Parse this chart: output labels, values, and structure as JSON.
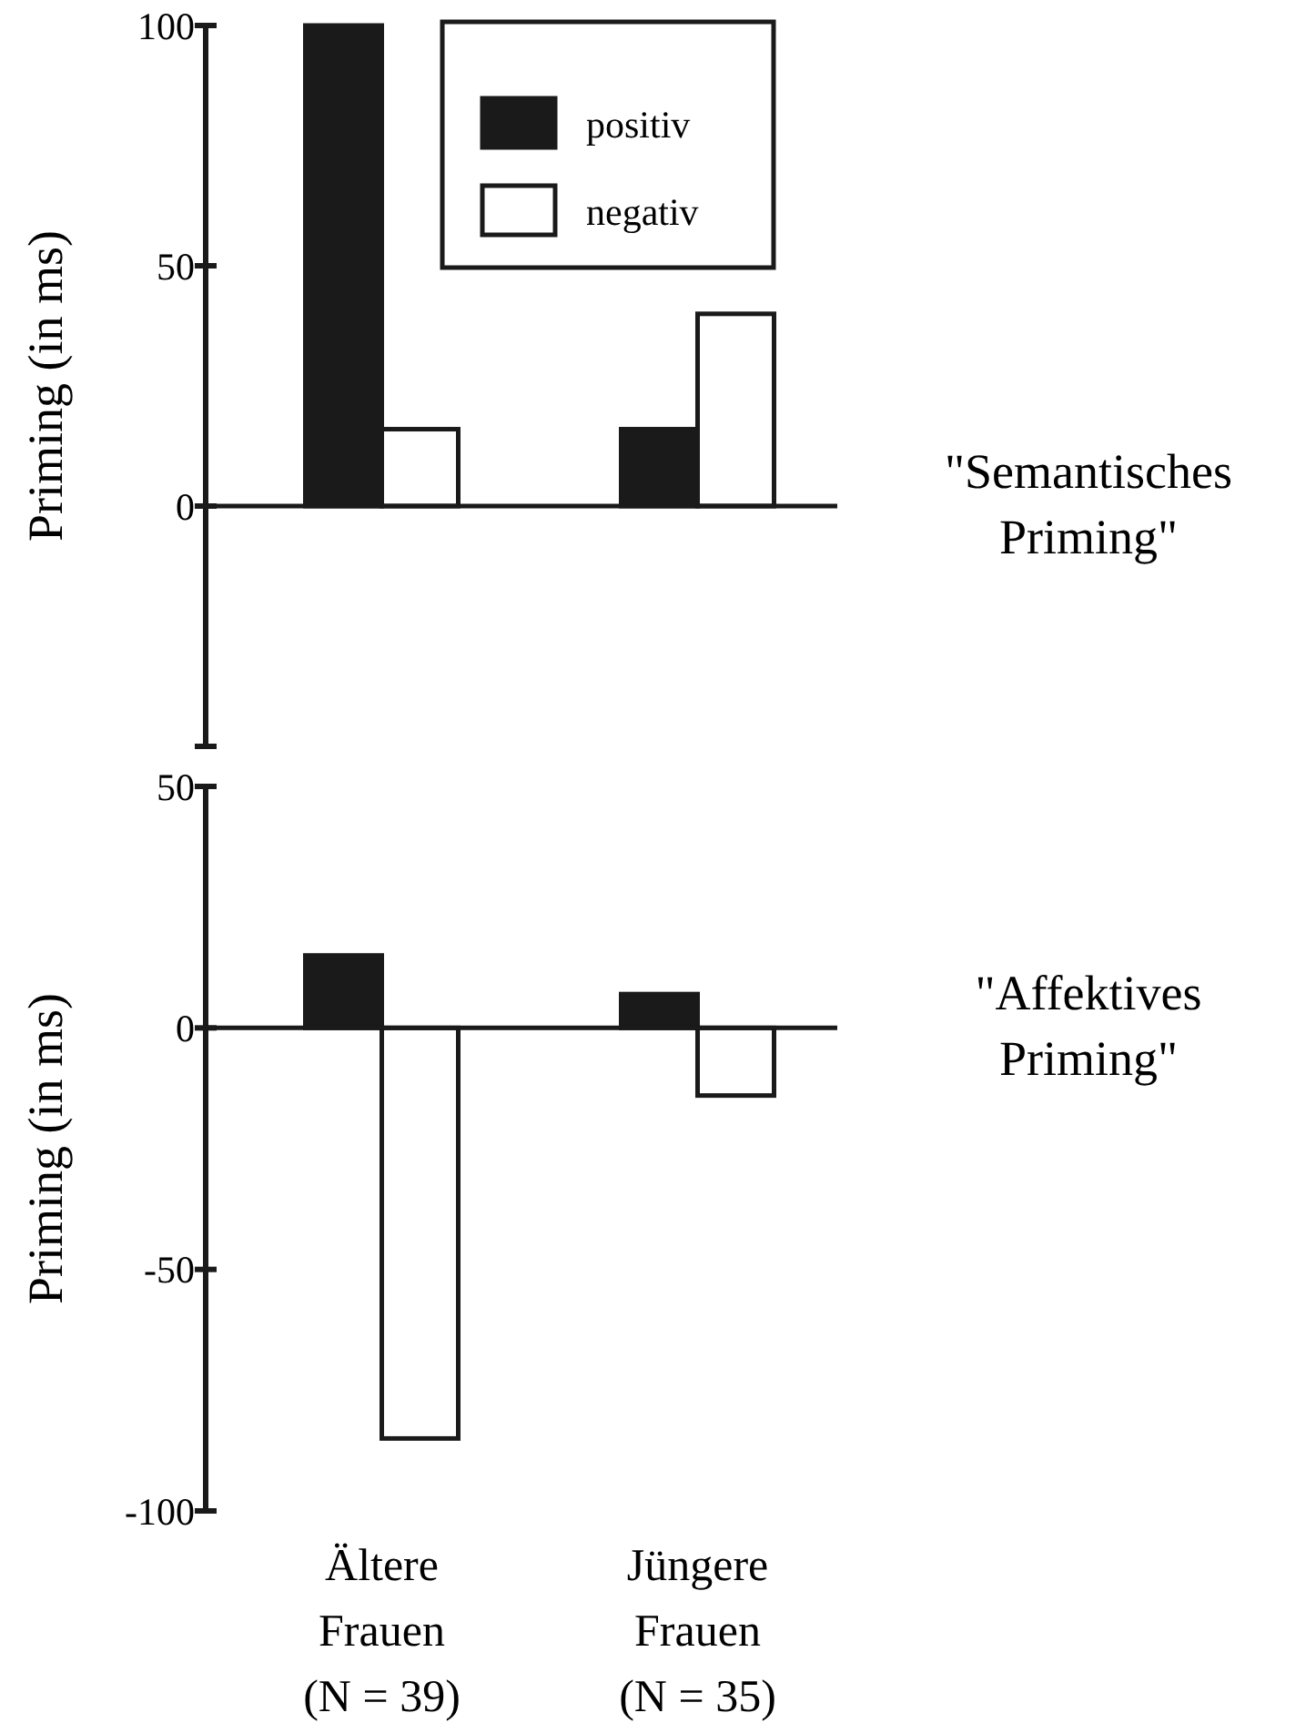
{
  "chart_data": [
    {
      "type": "bar",
      "ylabel": "Priming (in ms)",
      "categories": [
        null,
        null
      ],
      "series": [
        {
          "name": "positiv",
          "color": "#1a1a1a",
          "values": [
            100,
            16
          ]
        },
        {
          "name": "negativ",
          "color": "#ffffff",
          "values": [
            16,
            40
          ]
        }
      ],
      "ylim": [
        -50,
        100
      ],
      "yticks": [
        {
          "value": -50,
          "label": null
        },
        0,
        50,
        100
      ],
      "tick_labels": "y",
      "legend": "top right",
      "annotations": [
        "\"Semantisches Priming\""
      ]
    },
    {
      "type": "bar",
      "ylabel": "Priming (in ms)",
      "categories": [
        "Ältere\nFrauen\n(N = 39)",
        "Jüngere\nFrauen\n(N = 35)"
      ],
      "series": [
        {
          "color": "#1a1a1a",
          "values": [
            15,
            7
          ]
        },
        {
          "color": "#ffffff",
          "values": [
            -85,
            -14
          ]
        }
      ],
      "ylim": [
        -100,
        50
      ],
      "yticks": [
        -100,
        -50,
        0,
        50
      ],
      "annotations": [
        "\"Affektives Priming\""
      ]
    }
  ]
}
